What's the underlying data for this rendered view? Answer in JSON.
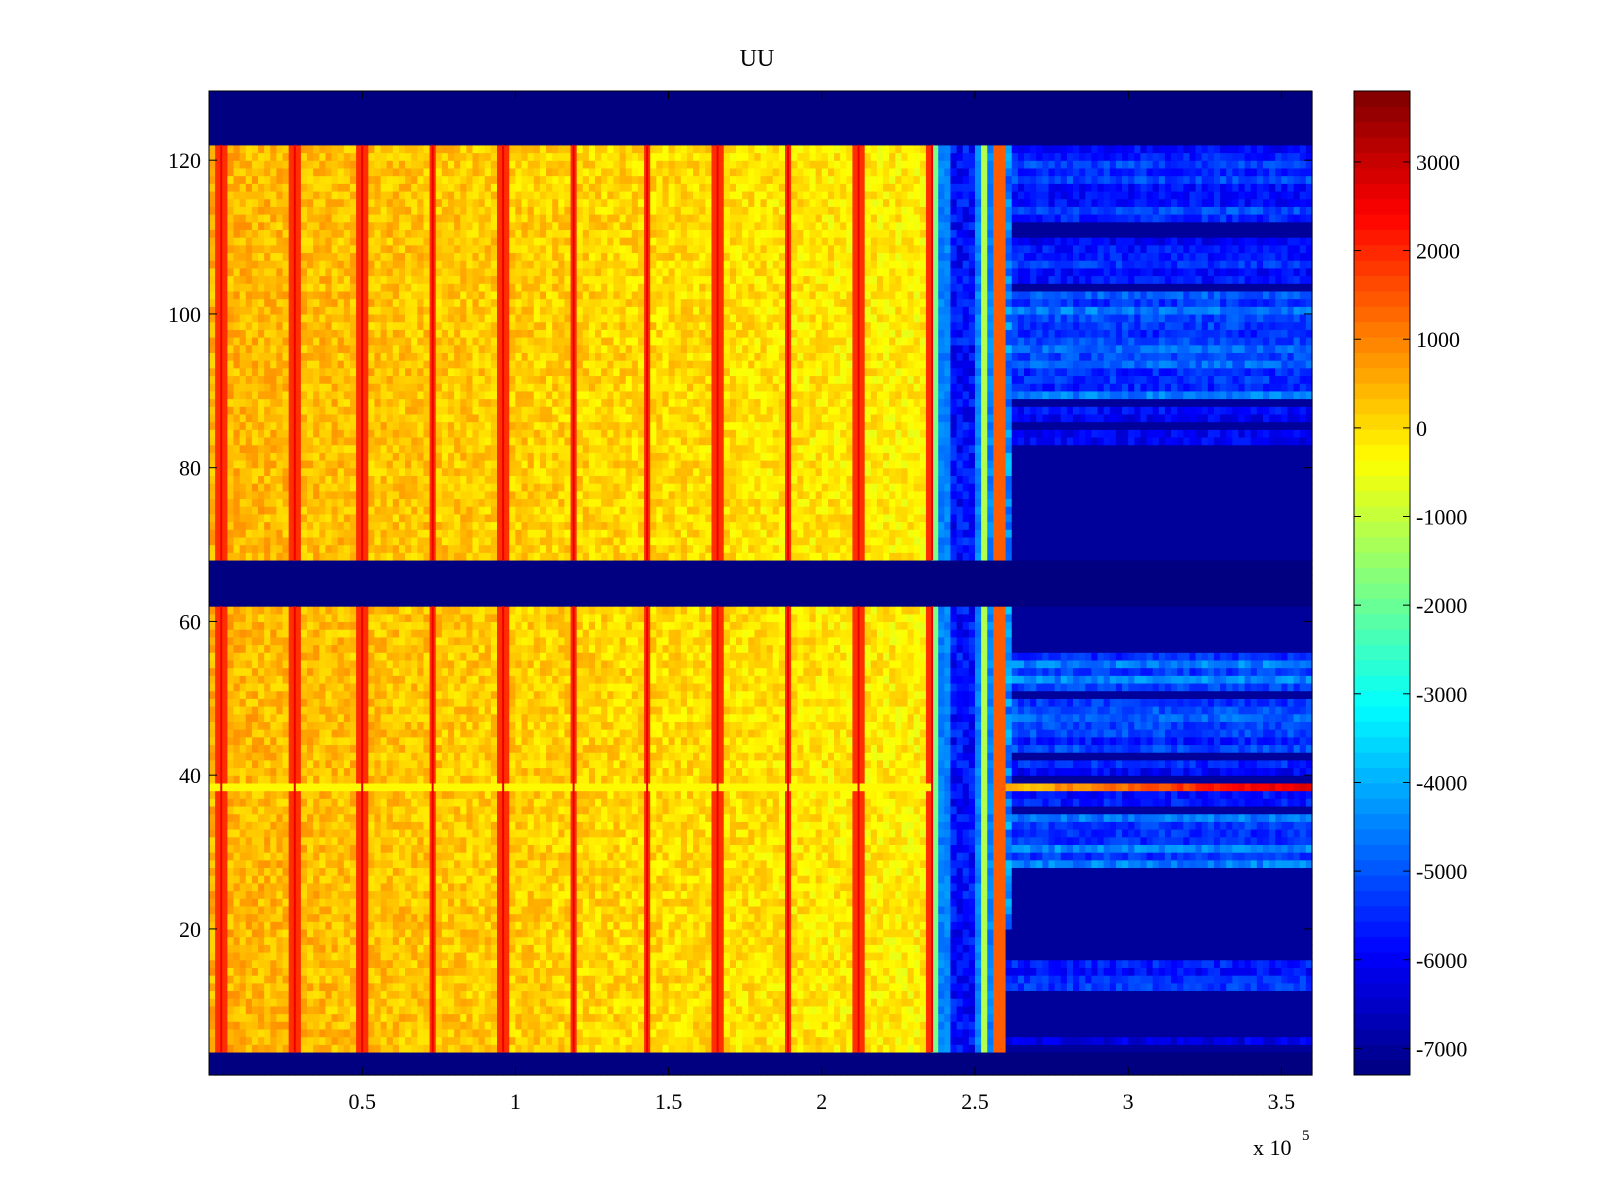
{
  "chart_data": {
    "type": "heatmap",
    "title": "UU",
    "xlabel": "",
    "ylabel": "",
    "x_multiplier_label": "x 10",
    "x_multiplier_exponent": "5",
    "xlim": [
      0,
      3.6
    ],
    "ylim": [
      1,
      129
    ],
    "xticks": [
      0.5,
      1,
      1.5,
      2,
      2.5,
      3,
      3.5
    ],
    "xtick_labels": [
      "0.5",
      "1",
      "1.5",
      "2",
      "2.5",
      "3",
      "3.5"
    ],
    "yticks": [
      20,
      40,
      60,
      80,
      100,
      120
    ],
    "ytick_labels": [
      "20",
      "40",
      "60",
      "80",
      "100",
      "120"
    ],
    "colorbar": {
      "colormap": "jet",
      "range": [
        -7300,
        3800
      ],
      "ticks": [
        3000,
        2000,
        1000,
        0,
        -1000,
        -2000,
        -3000,
        -4000,
        -5000,
        -6000,
        -7000
      ],
      "tick_labels": [
        "3000",
        "2000",
        "1000",
        "0",
        "-1000",
        "-2000",
        "-3000",
        "-4000",
        "-5000",
        "-6000",
        "-7000"
      ]
    },
    "regions": [
      {
        "name": "empty-channel-bands",
        "y_ranges": [
          [
            1,
            4
          ],
          [
            62,
            68
          ],
          [
            122,
            129
          ]
        ],
        "value": -7300
      },
      {
        "name": "active-block",
        "x_range": [
          0,
          2.35
        ],
        "y_ranges": [
          [
            4,
            62
          ],
          [
            68,
            122
          ]
        ],
        "value_approx": 300
      },
      {
        "name": "transition-block",
        "x_range": [
          2.35,
          2.6
        ],
        "value_approx": -5500
      },
      {
        "name": "late-block",
        "x_range": [
          2.6,
          3.6
        ],
        "value_approx": -6500
      },
      {
        "name": "outlier-channel",
        "y": 39,
        "x_range": [
          2.6,
          3.6
        ],
        "value_approx": 2000
      }
    ],
    "vertical_spike_lines_x": [
      0.04,
      0.28,
      0.5,
      0.73,
      0.96,
      1.19,
      1.43,
      1.66,
      1.89,
      2.12,
      2.36
    ]
  }
}
